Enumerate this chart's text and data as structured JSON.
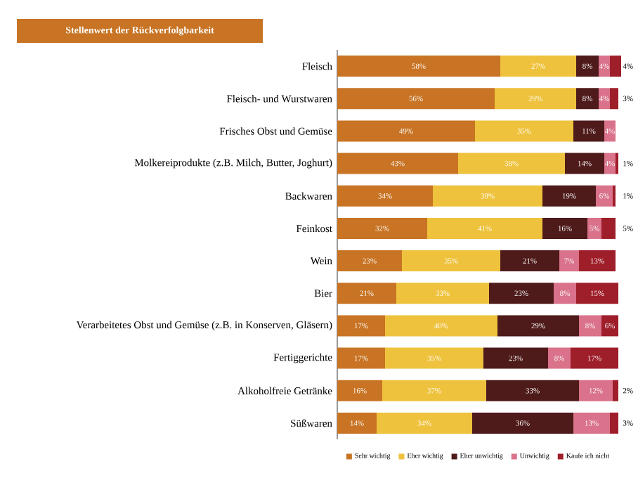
{
  "chart_data": {
    "type": "bar",
    "orientation": "horizontal",
    "stacked": true,
    "title": "Stellenwert der Rückverfolgbarkeit",
    "categories": [
      "Fleisch",
      "Fleisch- und Wurstwaren",
      "Frisches Obst und Gemüse",
      "Molkereiprodukte (z.B. Milch, Butter, Joghurt)",
      "Backwaren",
      "Feinkost",
      "Wein",
      "Bier",
      "Verarbeitetes Obst und Gemüse (z.B. in Konserven, Gläsern)",
      "Fertiggerichte",
      "Alkoholfreie Getränke",
      "Süßwaren"
    ],
    "xlim": [
      0,
      101
    ],
    "tick_labels": "y",
    "legend": "bottom",
    "series": [
      {
        "name": "Sehr wichtig",
        "color": "#c87424",
        "values": [
          58,
          56,
          49,
          43,
          34,
          32,
          23,
          21,
          17,
          17,
          16,
          14
        ],
        "value_labels": [
          "58%",
          "56%",
          "49%",
          "43%",
          "34%",
          "32%",
          "23%",
          "21%",
          "17%",
          "17%",
          "16%",
          "14%"
        ]
      },
      {
        "name": "Eher wichtig",
        "color": "#eec23c",
        "values": [
          27,
          29,
          35,
          38,
          39,
          41,
          35,
          33,
          40,
          35,
          37,
          34
        ],
        "value_labels": [
          "27%",
          "29%",
          "35%",
          "38%",
          "39%",
          "41%",
          "35%",
          "33%",
          "40%",
          "35%",
          "37%",
          "34%"
        ]
      },
      {
        "name": "Eher unwichtig",
        "color": "#4e1a1a",
        "values": [
          8,
          8,
          11,
          14,
          19,
          16,
          21,
          23,
          29,
          23,
          33,
          36
        ],
        "value_labels": [
          "8%",
          "8%",
          "11%",
          "14%",
          "19%",
          "16%",
          "21%",
          "23%",
          "29%",
          "23%",
          "33%",
          "36%"
        ]
      },
      {
        "name": "Unwichtig",
        "color": "#d9728a",
        "values": [
          4,
          4,
          4,
          4,
          6,
          5,
          7,
          8,
          8,
          8,
          12,
          13
        ],
        "value_labels": [
          "4%",
          "4%",
          "4%",
          "4%",
          "6%",
          "5%",
          "7%",
          "8%",
          "8%",
          "8%",
          "12%",
          "13%"
        ]
      },
      {
        "name": "Kaufe ich nicht",
        "color": "#9e1e2a",
        "values": [
          4,
          3,
          null,
          1,
          1,
          5,
          13,
          15,
          6,
          17,
          2,
          3
        ],
        "value_labels": [
          "4%",
          "3%",
          null,
          "1%",
          "1%",
          "5%",
          "13%",
          "15%",
          "6%",
          "17%",
          "2%",
          "3%"
        ]
      }
    ]
  }
}
